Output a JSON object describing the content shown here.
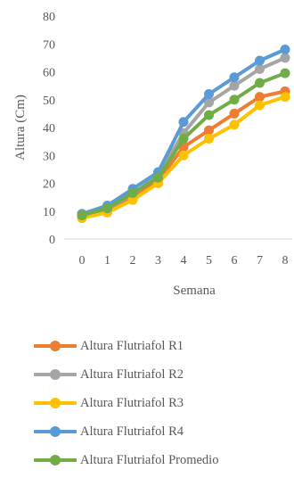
{
  "chart_data": {
    "type": "line",
    "xlabel": "Semana",
    "ylabel": "Altura (Cm)",
    "x": [
      0,
      1,
      2,
      3,
      4,
      5,
      6,
      7,
      8
    ],
    "ylim": [
      0,
      80
    ],
    "yticks": [
      0,
      10,
      20,
      30,
      40,
      50,
      60,
      70,
      80
    ],
    "grid": false,
    "legend_position": "bottom",
    "series": [
      {
        "name": "Altura Flutriafol R1",
        "color": "#ED7D31",
        "values": [
          8,
          10,
          15,
          21,
          33,
          39,
          45,
          51,
          53
        ]
      },
      {
        "name": "Altura Flutriafol R2",
        "color": "#A5A5A5",
        "values": [
          9,
          11,
          16,
          23,
          38,
          49,
          55,
          61,
          65
        ]
      },
      {
        "name": "Altura Flutriafol R3",
        "color": "#FFC000",
        "values": [
          7.5,
          9.5,
          14,
          20,
          30,
          36,
          41,
          48,
          51
        ]
      },
      {
        "name": "Altura Flutriafol R4",
        "color": "#5B9BD5",
        "values": [
          9,
          12,
          18,
          24,
          42,
          52,
          58,
          64,
          68
        ]
      },
      {
        "name": "Altura Flutriafol Promedio",
        "color": "#70AD47",
        "values": [
          8.5,
          11,
          16.5,
          22,
          36,
          44.5,
          50,
          56,
          59.5
        ]
      }
    ]
  }
}
